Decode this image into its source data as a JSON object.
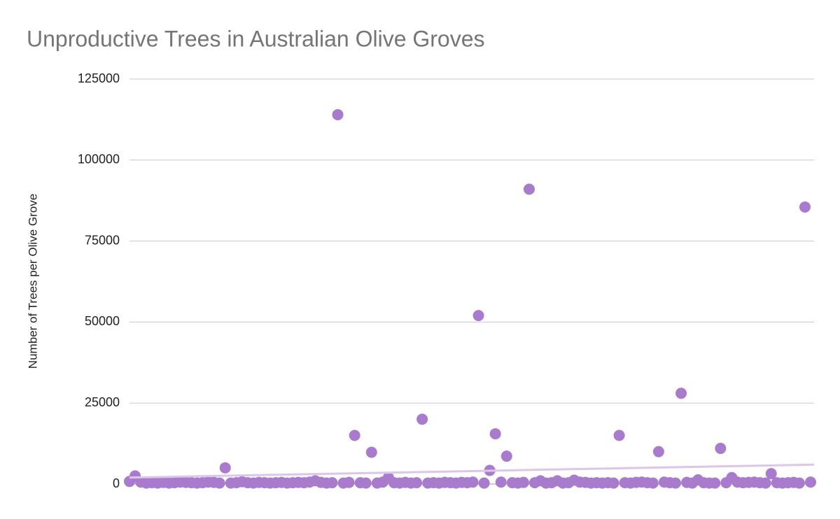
{
  "chart_data": {
    "type": "scatter",
    "title": "Unproductive Trees in Australian Olive Groves",
    "y_label": "Number of Trees per Olive Grove",
    "color": "#a97bcc",
    "values": [
      800,
      2500,
      600,
      300,
      400,
      300,
      500,
      300,
      400,
      600,
      500,
      400,
      300,
      400,
      600,
      500,
      300,
      5000,
      300,
      400,
      700,
      400,
      300,
      500,
      400,
      300,
      400,
      500,
      300,
      400,
      500,
      400,
      600,
      1000,
      500,
      300,
      400,
      114000,
      300,
      500,
      15000,
      400,
      300,
      9800,
      300,
      600,
      2000,
      400,
      300,
      500,
      300,
      400,
      20000,
      300,
      400,
      300,
      500,
      400,
      300,
      500,
      400,
      600,
      52000,
      300,
      4200,
      15500,
      600,
      8600,
      400,
      300,
      500,
      91000,
      400,
      1000,
      300,
      400,
      1000,
      300,
      400,
      1200,
      600,
      500,
      300,
      400,
      300,
      400,
      300,
      15000,
      400,
      300,
      500,
      600,
      400,
      300,
      10000,
      600,
      400,
      300,
      28000,
      500,
      300,
      1300,
      400,
      300,
      300,
      11000,
      400,
      2000,
      600,
      400,
      500,
      600,
      400,
      300,
      3200,
      400,
      300,
      400,
      500,
      300,
      85500,
      600
    ],
    "trendline": {
      "color": "#dcc6ea",
      "values": [
        2000,
        6000
      ]
    },
    "ylim": [
      0,
      125000
    ],
    "yticks": [
      0,
      25000,
      50000,
      75000,
      100000,
      125000
    ],
    "grid": true
  }
}
